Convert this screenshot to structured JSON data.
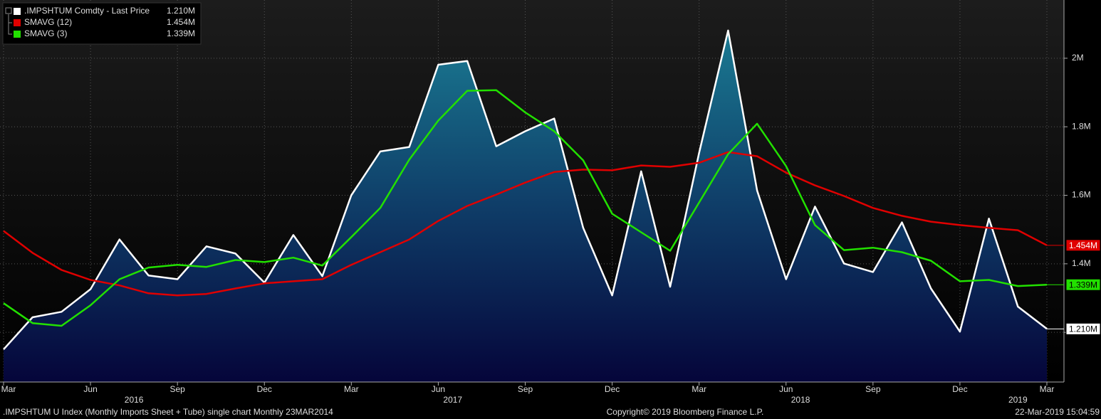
{
  "chart_data": {
    "type": "line",
    "categories": [
      "Mar",
      null,
      null,
      "Jun",
      null,
      null,
      "Sep",
      null,
      null,
      "Dec",
      null,
      null,
      "Mar",
      null,
      null,
      "Jun",
      null,
      null,
      "Sep",
      null,
      null,
      "Dec",
      null,
      null,
      "Mar",
      null,
      null,
      "Jun",
      null,
      null,
      "Sep",
      null,
      null,
      "Dec",
      null,
      null,
      "Mar"
    ],
    "years": [
      "2016",
      "2017",
      "2018",
      "2019"
    ],
    "series": [
      {
        "name": ".IMPSHTUM Comdty - Last Price",
        "color": "#ffffff",
        "area": true,
        "values": [
          1150000,
          1244000,
          1260000,
          1326000,
          1471000,
          1366000,
          1355000,
          1451000,
          1430000,
          1345000,
          1484000,
          1364000,
          1600000,
          1728000,
          1741000,
          1981000,
          1992000,
          1743000,
          1787000,
          1824000,
          1505000,
          1308000,
          1670000,
          1333000,
          1724000,
          2081000,
          1614000,
          1355000,
          1567000,
          1401000,
          1376000,
          1521000,
          1328000,
          1202000,
          1532000,
          1275000,
          1210000
        ],
        "value_labels": [
          null,
          null,
          null,
          null,
          null,
          null,
          null,
          null,
          null,
          null,
          null,
          null,
          null,
          null,
          null,
          null,
          null,
          null,
          null,
          null,
          null,
          null,
          null,
          null,
          null,
          null,
          null,
          null,
          null,
          null,
          null,
          null,
          null,
          null,
          null,
          null,
          "1.210M"
        ]
      },
      {
        "name": "SMAVG (12)",
        "color": "#e00000",
        "values": [
          1496000,
          1432000,
          1382000,
          1353000,
          1337000,
          1314000,
          1308000,
          1312000,
          1328000,
          1343000,
          1349000,
          1355000,
          1397000,
          1434000,
          1471000,
          1525000,
          1569000,
          1602000,
          1637000,
          1668000,
          1675000,
          1673000,
          1687000,
          1683000,
          1695000,
          1726000,
          1714000,
          1666000,
          1629000,
          1598000,
          1563000,
          1540000,
          1523000,
          1513000,
          1505000,
          1498000,
          1454000
        ],
        "value_labels": [
          null,
          null,
          null,
          null,
          null,
          null,
          null,
          null,
          null,
          null,
          null,
          null,
          null,
          null,
          null,
          null,
          null,
          null,
          null,
          null,
          null,
          null,
          null,
          null,
          null,
          null,
          null,
          null,
          null,
          null,
          null,
          null,
          null,
          null,
          null,
          null,
          "1.454M"
        ]
      },
      {
        "name": "SMAVG (3)",
        "color": "#22e000",
        "values": [
          1285000,
          1227000,
          1219000,
          1279000,
          1355000,
          1389000,
          1397000,
          1391000,
          1411000,
          1405000,
          1418000,
          1395000,
          1478000,
          1563000,
          1704000,
          1818000,
          1905000,
          1907000,
          1842000,
          1787000,
          1702000,
          1546000,
          1492000,
          1438000,
          1579000,
          1720000,
          1809000,
          1685000,
          1513000,
          1440000,
          1447000,
          1434000,
          1409000,
          1349000,
          1353000,
          1335000,
          1339000
        ],
        "value_labels": [
          null,
          null,
          null,
          null,
          null,
          null,
          null,
          null,
          null,
          null,
          null,
          null,
          null,
          null,
          null,
          null,
          null,
          null,
          null,
          null,
          null,
          null,
          null,
          null,
          null,
          null,
          null,
          null,
          null,
          null,
          null,
          null,
          null,
          null,
          null,
          null,
          "1.339M"
        ]
      }
    ],
    "ylim": [
      1055000,
      2170000
    ],
    "yticks": [
      {
        "value": 1200000,
        "label": "1.2M"
      },
      {
        "value": 1400000,
        "label": "1.4M"
      },
      {
        "value": 1600000,
        "label": "1.6M"
      },
      {
        "value": 1800000,
        "label": "1.8M"
      },
      {
        "value": 2000000,
        "label": "2M"
      }
    ],
    "grid": true,
    "footer_left": ".IMPSHTUM U Index (Monthly Imports Sheet + Tube) single chart  Monthly 23MAR2014",
    "footer_center": "Copyright© 2019 Bloomberg Finance L.P.",
    "footer_right": "22-Mar-2019 15:04:59"
  }
}
